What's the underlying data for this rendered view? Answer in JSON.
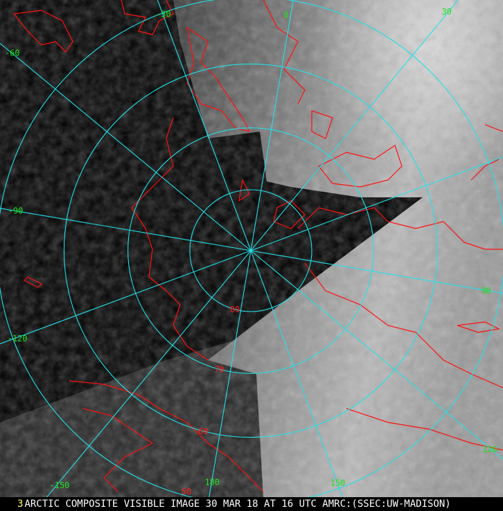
{
  "caption": {
    "frame_number": "3",
    "text": "ARCTIC COMPOSITE VISIBLE IMAGE 30 MAR 18 AT 16 UTC AMRC:(SSEC:UW-MADISON)"
  },
  "map": {
    "projection": "polar stereographic, north pole",
    "latitudes": [
      80,
      70,
      60,
      50
    ],
    "longitudes": [
      -150,
      -120,
      -90,
      -60,
      -30,
      0,
      30,
      60,
      90,
      120,
      150,
      180
    ],
    "longitude_labels": [
      "-150",
      "-120",
      "-90",
      "-60",
      "-30",
      "0",
      "30",
      "",
      "90",
      "120",
      "150",
      "180"
    ],
    "latitude_labels": [
      "80",
      "70",
      "60",
      "50"
    ],
    "colors": {
      "graticule": "#22e0e8",
      "coastline": "#ff1010",
      "latitude_label": "#ff2020",
      "longitude_label": "#20e020",
      "caption_text": "#ffffff",
      "frame_number": "#ffff40"
    }
  }
}
